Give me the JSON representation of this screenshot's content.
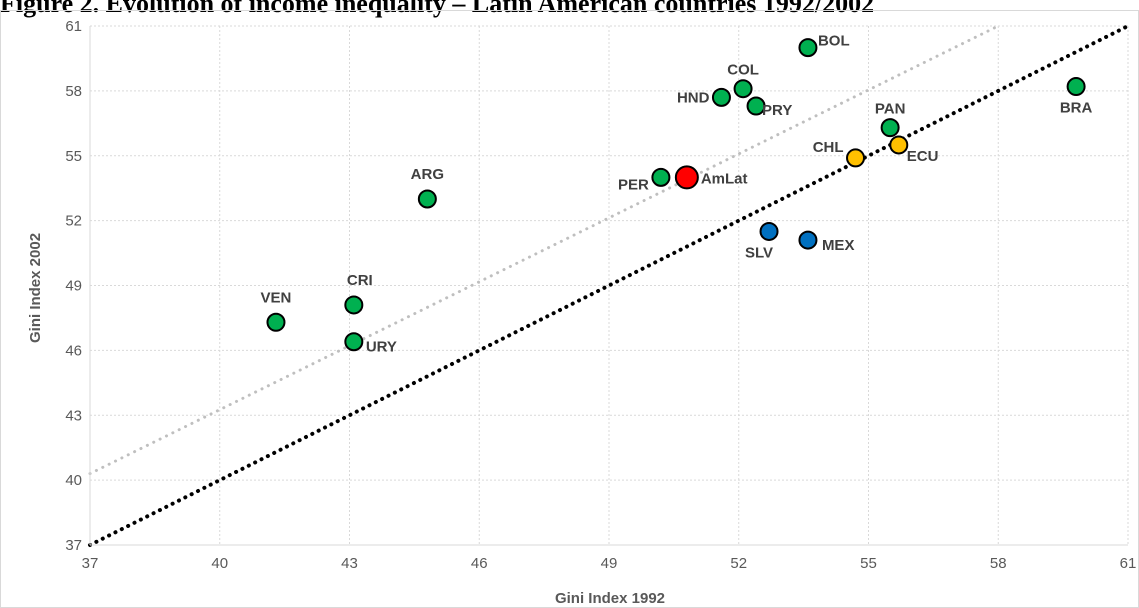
{
  "figure": {
    "title": "Figure 2. Evolution of income inequality – Latin American countries 1992/2002"
  },
  "chart_data": {
    "type": "scatter",
    "xlabel": "Gini Index 1992",
    "ylabel": "Gini Index 2002",
    "xlim": [
      37,
      61
    ],
    "ylim": [
      37,
      61
    ],
    "xticks": [
      37,
      40,
      43,
      46,
      49,
      52,
      55,
      58,
      61
    ],
    "yticks": [
      37,
      40,
      43,
      46,
      49,
      52,
      55,
      58,
      61
    ],
    "grid": true,
    "reference_lines": [
      {
        "style": "dotted",
        "color": "#000000",
        "points": [
          [
            37,
            37
          ],
          [
            61,
            61
          ]
        ]
      },
      {
        "style": "dotted",
        "color": "#bfbfbf",
        "points": [
          [
            37,
            40.3
          ],
          [
            58,
            61
          ]
        ]
      }
    ],
    "colors": {
      "green": "#00b050",
      "red": "#ff0000",
      "blue": "#0070c0",
      "yellow": "#ffc000",
      "red_label": "#ff0000"
    },
    "points": [
      {
        "label": "BOL",
        "x": 53.6,
        "y": 60.0,
        "color": "green"
      },
      {
        "label": "COL",
        "x": 52.1,
        "y": 58.1,
        "color": "green"
      },
      {
        "label": "HND",
        "x": 51.6,
        "y": 57.7,
        "color": "green"
      },
      {
        "label": "PRY",
        "x": 52.4,
        "y": 57.3,
        "color": "green"
      },
      {
        "label": "BRA",
        "x": 59.8,
        "y": 58.2,
        "color": "green"
      },
      {
        "label": "PAN",
        "x": 55.5,
        "y": 56.3,
        "color": "green"
      },
      {
        "label": "CHL",
        "x": 54.7,
        "y": 54.9,
        "color": "yellow"
      },
      {
        "label": "ECU",
        "x": 55.7,
        "y": 55.5,
        "color": "yellow"
      },
      {
        "label": "PER",
        "x": 50.2,
        "y": 54.0,
        "color": "green"
      },
      {
        "label": "AmLat",
        "x": 50.8,
        "y": 54.0,
        "color": "red"
      },
      {
        "label": "ARG",
        "x": 44.8,
        "y": 53.0,
        "color": "green"
      },
      {
        "label": "SLV",
        "x": 52.7,
        "y": 51.5,
        "color": "blue"
      },
      {
        "label": "MEX",
        "x": 53.6,
        "y": 51.1,
        "color": "blue"
      },
      {
        "label": "CRI",
        "x": 43.1,
        "y": 48.1,
        "color": "green"
      },
      {
        "label": "VEN",
        "x": 41.3,
        "y": 47.3,
        "color": "green"
      },
      {
        "label": "URY",
        "x": 43.1,
        "y": 46.4,
        "color": "green"
      }
    ]
  }
}
